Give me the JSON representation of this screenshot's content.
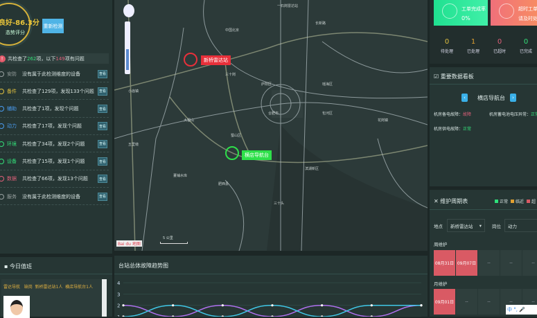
{
  "left": {
    "score_value": "良好-86.3分",
    "score_label": "态势评分",
    "recheck_label": "重新检测",
    "summary": {
      "prefix": "共检查了",
      "checked": "262",
      "mid": "项，以下",
      "issues": "149",
      "suffix": "项有问题"
    },
    "rows": [
      {
        "category": "安防",
        "color": "#9aa3a2",
        "text": "没有属于此检测维度的设备",
        "action": "查看"
      },
      {
        "category": "备件",
        "color": "#e0c040",
        "text": "共检查了129项，发现133个问题",
        "action": "查看"
      },
      {
        "category": "辅助",
        "color": "#4a9cf0",
        "text": "共检查了1项，发现个问题",
        "action": "查看"
      },
      {
        "category": "动力",
        "color": "#4a9cf0",
        "text": "共检查了17项，发现个问题",
        "action": "查看"
      },
      {
        "category": "环境",
        "color": "#34e07a",
        "text": "共检查了34项，发现2个问题",
        "action": "查看"
      },
      {
        "category": "设备",
        "color": "#34e07a",
        "text": "共检查了15项，发现1个问题",
        "action": "查看"
      },
      {
        "category": "数据",
        "color": "#e0607a",
        "text": "共检查了66项，发现13个问题",
        "action": "查看"
      },
      {
        "category": "服务",
        "color": "#9aa3a2",
        "text": "没有属于此检测维度的设备",
        "action": "查看"
      }
    ]
  },
  "duty": {
    "title": "今日值班",
    "info": "雷达导航   缺岗  新桥雷达站1人  横店导航台1人"
  },
  "map": {
    "stations": [
      {
        "name": "新桥雷达站",
        "status": "fault",
        "color": "#e8303a"
      },
      {
        "name": "横店导航台",
        "status": "normal",
        "color": "#2ee04a"
      }
    ],
    "labels": [
      "一石岗雷达站",
      "中国北京",
      "长新路",
      "三十岗",
      "合肥市",
      "大蜀山",
      "蜀山区",
      "包河区",
      "肥西县",
      "庐阳区",
      "瑶海区",
      "小庙镇",
      "五里墩",
      "滨湖新区",
      "董铺水库",
      "三十头",
      "花岗镇"
    ],
    "zoom_level": 0.55,
    "logo": "Bai du 地图",
    "scale": "5 公里"
  },
  "chart": {
    "title": "台站总体故障趋势图",
    "chart_data": {
      "type": "line",
      "ylim": [
        1,
        4
      ],
      "yticks": [
        "1",
        "2",
        "3",
        "4"
      ],
      "series": [
        {
          "color": "#b070f0",
          "values": [
            2,
            1,
            2,
            1,
            2,
            1,
            2
          ]
        },
        {
          "color": "#40c8e8",
          "values": [
            1,
            2,
            1,
            2,
            1,
            2,
            2
          ]
        }
      ]
    }
  },
  "right": {
    "cards": [
      {
        "title": "工单完成率",
        "value": "0%"
      },
      {
        "title": "超时工单：0",
        "value": "请及时处理"
      }
    ],
    "counts": [
      {
        "n": "0",
        "label": "待处理",
        "color": "#e0c040"
      },
      {
        "n": "1",
        "label": "已处理",
        "color": "#e0a030"
      },
      {
        "n": "0",
        "label": "已超时",
        "color": "#e0607a"
      },
      {
        "n": "0",
        "label": "已完成",
        "color": "#34e07a"
      }
    ],
    "board": {
      "title": "重要数据看板",
      "station": "横店导航台",
      "items": [
        {
          "k": "机房备电故障：",
          "v": "故障",
          "color": "#e0607a"
        },
        {
          "k": "机房蓄电池电压异常：",
          "v": "正常",
          "color": "#34e07a"
        },
        {
          "k": "机房供电故障：",
          "v": "正常",
          "color": "#34e07a"
        }
      ]
    },
    "maint": {
      "title": "维护周期表",
      "legend": [
        {
          "label": "正常",
          "color": "#2ee07a"
        },
        {
          "label": "临近",
          "color": "#e0a030"
        },
        {
          "label": "超",
          "color": "#d95a64"
        }
      ],
      "site_label": "地点",
      "site_value": "新桥雷达站",
      "post_label": "岗位",
      "post_value": "动力",
      "weekly_label": "周维护",
      "weekly": [
        "08月31日",
        "09月07日",
        "--",
        "--",
        "--"
      ],
      "monthly_label": "月维护",
      "monthly": [
        "09月01日",
        "--",
        "--",
        "--",
        "--"
      ]
    },
    "ime": "中 °, 🎤"
  }
}
